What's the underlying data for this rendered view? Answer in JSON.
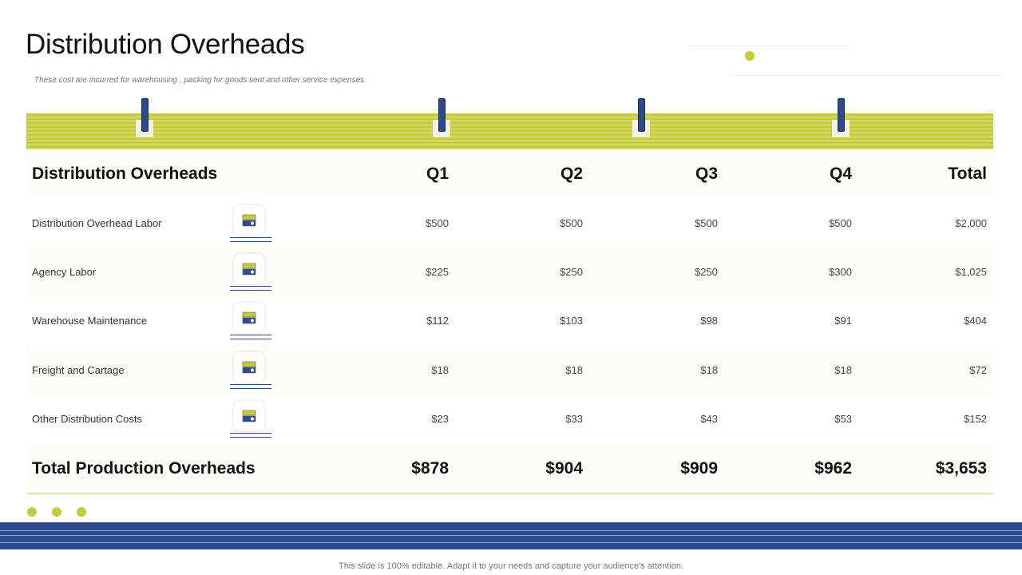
{
  "title": "Distribution Overheads",
  "subtitle": "These cost are incurred for warehousing , packing for goods sent and other service expenses.",
  "colors": {
    "accent": "#c5cc3a",
    "blue": "#2e4a8f"
  },
  "table": {
    "headers": [
      "Distribution Overheads",
      "Q1",
      "Q2",
      "Q3",
      "Q4",
      "Total"
    ],
    "rows": [
      {
        "label": "Distribution Overhead Labor",
        "icon": "calculator-icon",
        "values": [
          "$500",
          "$500",
          "$500",
          "$500",
          "$2,000"
        ]
      },
      {
        "label": "Agency Labor",
        "icon": "building-icon",
        "values": [
          "$225",
          "$250",
          "$250",
          "$300",
          "$1,025"
        ]
      },
      {
        "label": "Warehouse Maintenance",
        "icon": "warehouse-icon",
        "values": [
          "$112",
          "$103",
          "$98",
          "$91",
          "$404"
        ]
      },
      {
        "label": "Freight and Cartage",
        "icon": "document-icon",
        "values": [
          "$18",
          "$18",
          "$18",
          "$18",
          "$72"
        ]
      },
      {
        "label": "Other Distribution Costs",
        "icon": "register-icon",
        "values": [
          "$23",
          "$33",
          "$43",
          "$53",
          "$152"
        ]
      }
    ],
    "total": {
      "label": "Total Production Overheads",
      "values": [
        "$878",
        "$904",
        "$909",
        "$962",
        "$3,653"
      ]
    }
  },
  "footer": "This slide is 100% editable. Adapt it to your needs and capture your audience's attention."
}
